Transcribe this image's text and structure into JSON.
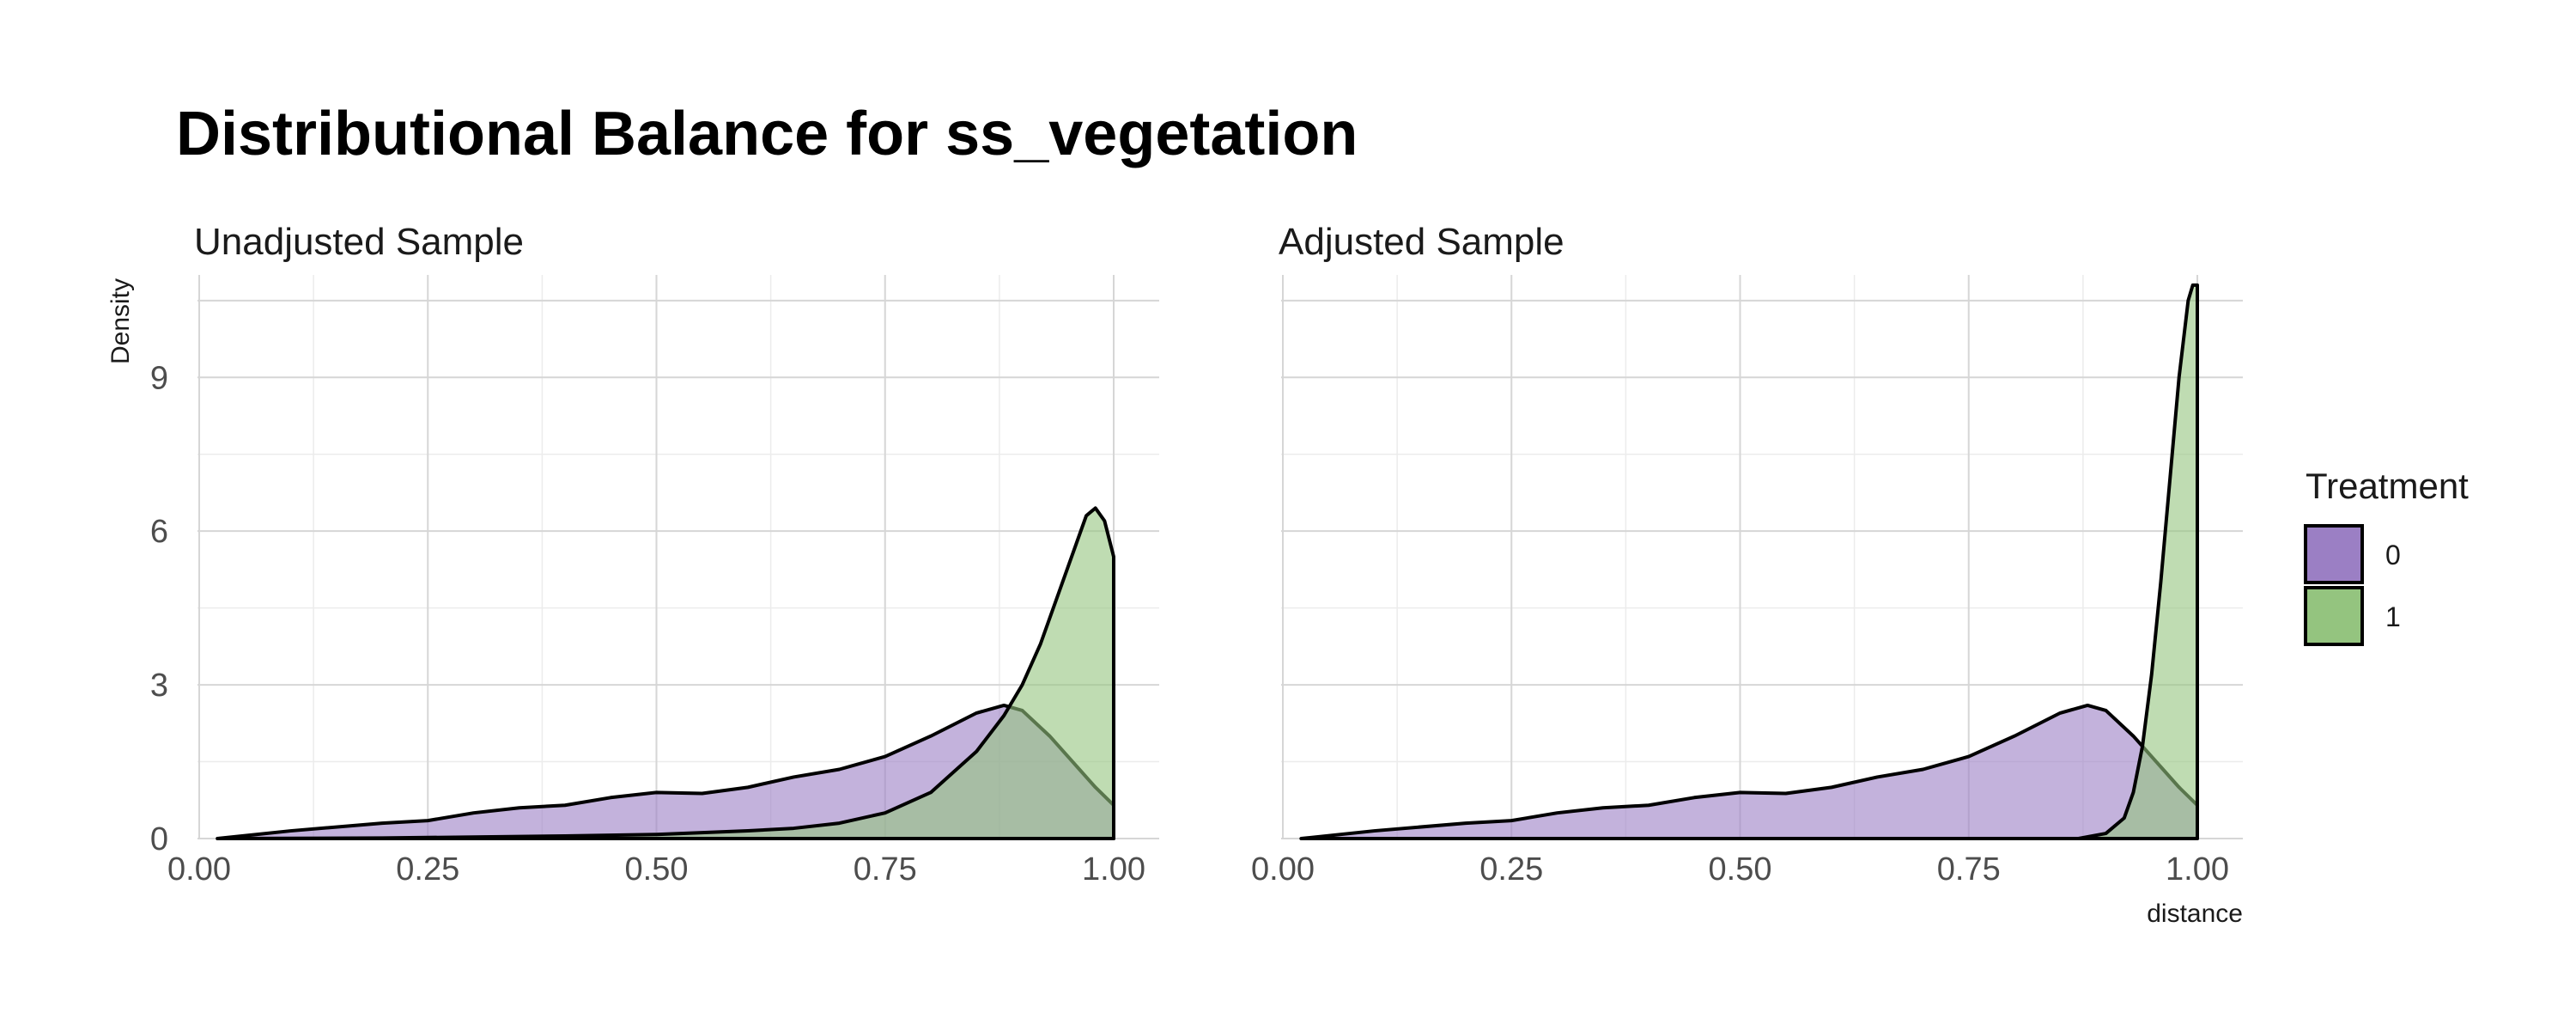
{
  "chart_data": {
    "type": "area",
    "title": "Distributional Balance for ss_vegetation",
    "ylabel": "Density",
    "xlabel": "distance",
    "xlim": [
      0,
      1
    ],
    "ylim": [
      0,
      11
    ],
    "x_ticks": [
      "0.00",
      "0.25",
      "0.50",
      "0.75",
      "1.00"
    ],
    "x_tick_values": [
      0,
      0.25,
      0.5,
      0.75,
      1.0
    ],
    "y_ticks": [
      "0",
      "3",
      "6",
      "9"
    ],
    "y_tick_values": [
      0,
      3,
      6,
      9
    ],
    "grid": true,
    "legend": {
      "title": "Treatment",
      "placement": "right",
      "entries": [
        {
          "label": "0",
          "color": "#9b7fc4"
        },
        {
          "label": "1",
          "color": "#94c47f"
        }
      ]
    },
    "panels": [
      {
        "title": "Unadjusted Sample",
        "series": [
          {
            "name": "0",
            "x": [
              0.02,
              0.1,
              0.2,
              0.25,
              0.3,
              0.35,
              0.4,
              0.45,
              0.5,
              0.55,
              0.6,
              0.65,
              0.7,
              0.75,
              0.8,
              0.85,
              0.88,
              0.9,
              0.93,
              0.96,
              0.98,
              1.0
            ],
            "y": [
              0.0,
              0.15,
              0.3,
              0.35,
              0.5,
              0.6,
              0.65,
              0.8,
              0.9,
              0.88,
              1.0,
              1.2,
              1.35,
              1.6,
              2.0,
              2.45,
              2.6,
              2.5,
              2.0,
              1.4,
              1.0,
              0.65
            ]
          },
          {
            "name": "1",
            "x": [
              0.02,
              0.2,
              0.3,
              0.4,
              0.5,
              0.6,
              0.65,
              0.7,
              0.75,
              0.8,
              0.85,
              0.88,
              0.9,
              0.92,
              0.94,
              0.96,
              0.97,
              0.98,
              0.99,
              1.0
            ],
            "y": [
              0.0,
              0.01,
              0.03,
              0.05,
              0.08,
              0.15,
              0.2,
              0.3,
              0.5,
              0.9,
              1.7,
              2.4,
              3.0,
              3.8,
              4.8,
              5.8,
              6.3,
              6.45,
              6.2,
              5.5
            ]
          }
        ]
      },
      {
        "title": "Adjusted Sample",
        "series": [
          {
            "name": "0",
            "x": [
              0.02,
              0.1,
              0.2,
              0.25,
              0.3,
              0.35,
              0.4,
              0.45,
              0.5,
              0.55,
              0.6,
              0.65,
              0.7,
              0.75,
              0.8,
              0.85,
              0.88,
              0.9,
              0.93,
              0.96,
              0.98,
              1.0
            ],
            "y": [
              0.0,
              0.15,
              0.3,
              0.35,
              0.5,
              0.6,
              0.65,
              0.8,
              0.9,
              0.88,
              1.0,
              1.2,
              1.35,
              1.6,
              2.0,
              2.45,
              2.6,
              2.5,
              2.0,
              1.4,
              1.0,
              0.65
            ]
          },
          {
            "name": "1",
            "x": [
              0.87,
              0.9,
              0.92,
              0.93,
              0.94,
              0.95,
              0.96,
              0.97,
              0.98,
              0.99,
              0.995,
              1.0
            ],
            "y": [
              0.0,
              0.1,
              0.4,
              0.9,
              1.8,
              3.2,
              5.0,
              7.0,
              9.0,
              10.5,
              10.8,
              10.8
            ]
          }
        ]
      }
    ]
  }
}
